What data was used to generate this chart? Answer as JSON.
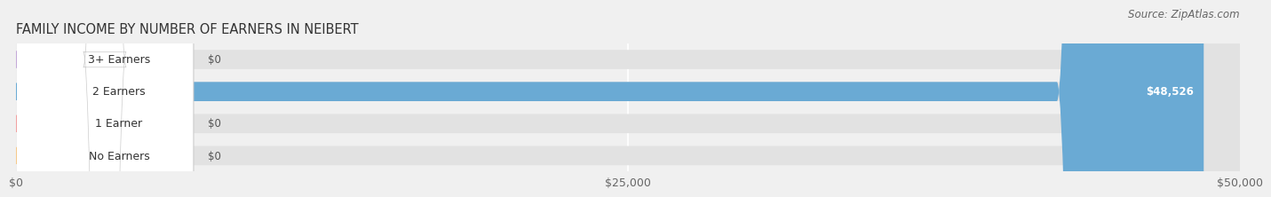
{
  "title": "FAMILY INCOME BY NUMBER OF EARNERS IN NEIBERT",
  "source": "Source: ZipAtlas.com",
  "categories": [
    "No Earners",
    "1 Earner",
    "2 Earners",
    "3+ Earners"
  ],
  "values": [
    0,
    0,
    48526,
    0
  ],
  "max_value": 50000,
  "bar_colors": [
    "#f5c98a",
    "#f0a0a0",
    "#6aaad4",
    "#c3a8d8"
  ],
  "bar_value_labels": [
    "$0",
    "$0",
    "$48,526",
    "$0"
  ],
  "x_ticks": [
    0,
    25000,
    50000
  ],
  "x_tick_labels": [
    "$0",
    "$25,000",
    "$50,000"
  ],
  "background_color": "#f0f0f0",
  "bar_background_color": "#e2e2e2",
  "title_fontsize": 10.5,
  "source_fontsize": 8.5,
  "label_fontsize": 9,
  "value_fontsize": 8.5
}
